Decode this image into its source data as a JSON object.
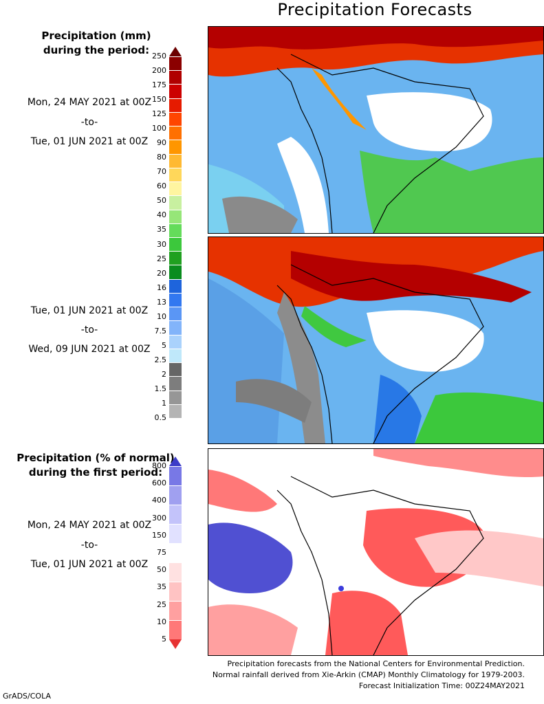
{
  "title": "Precipitation Forecasts",
  "panel1": {
    "heading_line1": "Precipitation (mm)",
    "heading_line2": "during the period:",
    "start": "Mon, 24 MAY 2021 at 00Z",
    "sep": "-to-",
    "end": "Tue, 01 JUN 2021 at 00Z"
  },
  "panel2": {
    "start": "Tue, 01 JUN 2021 at 00Z",
    "sep": "-to-",
    "end": "Wed, 09 JUN 2021 at 00Z"
  },
  "panel3": {
    "heading_line1": "Precipitation (% of normal)",
    "heading_line2": "during the first period:",
    "start": "Mon, 24 MAY 2021 at 00Z",
    "sep": "-to-",
    "end": "Tue, 01 JUN 2021 at 00Z"
  },
  "mm_scale": {
    "labels": [
      "250",
      "200",
      "175",
      "150",
      "125",
      "100",
      "90",
      "80",
      "70",
      "60",
      "50",
      "40",
      "35",
      "30",
      "25",
      "20",
      "16",
      "13",
      "10",
      "7.5",
      "5",
      "2.5",
      "2",
      "1.5",
      "1",
      "0.5"
    ],
    "colors": [
      "#6b0000",
      "#8b0000",
      "#b00000",
      "#cc0000",
      "#e61b00",
      "#ff4500",
      "#ff7000",
      "#ff9600",
      "#ffb932",
      "#ffd75a",
      "#fff5a0",
      "#c8f0a0",
      "#96e678",
      "#64dc5a",
      "#3cc83c",
      "#20a020",
      "#0a8c1e",
      "#1e64dc",
      "#3278f0",
      "#5a96f5",
      "#82b4fa",
      "#aad2fc",
      "#bfe8fa",
      "#666666",
      "#7d7d7d",
      "#969696",
      "#b4b4b4",
      "#d2d2d2"
    ]
  },
  "pct_scale": {
    "labels": [
      "800",
      "600",
      "400",
      "300",
      "150",
      "75",
      "50",
      "35",
      "25",
      "10",
      "5"
    ],
    "colors": [
      "#5050d2",
      "#7878e6",
      "#a0a0f0",
      "#c3c3fa",
      "#e1e1ff",
      "#ffffff",
      "#ffe1e1",
      "#ffc3c3",
      "#ffa0a0",
      "#ff7878",
      "#f05050"
    ]
  },
  "footer": {
    "line1": "Precipitation forecasts from the National Centers for Environmental Prediction.",
    "line2": "Normal rainfall derived from Xie-Arkin (CMAP) Monthly Climatology for 1979-2003.",
    "line3": "Forecast Initialization Time: 00Z24MAY2021"
  },
  "credit": "GrADS/COLA"
}
